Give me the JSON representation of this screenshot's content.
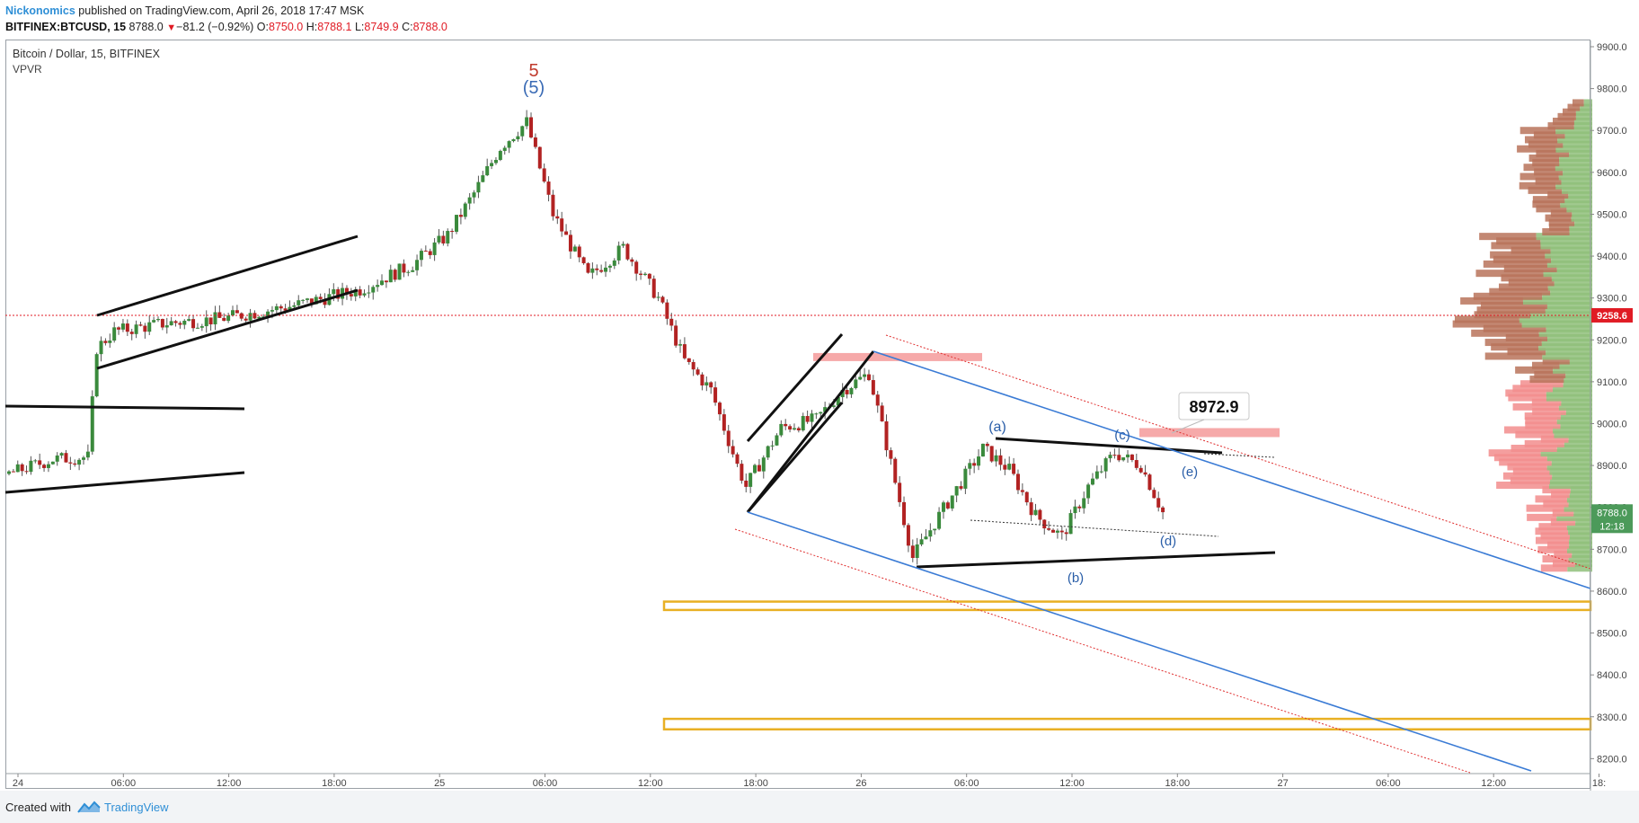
{
  "header": {
    "author": "Nickonomics",
    "published": "published on TradingView.com, April 26, 2018 17:47 MSK",
    "symbol": "BITFINEX:BTCUSD, 15",
    "last": "8788.0",
    "change": "−81.2 (−0.92%)",
    "open_label": "O:",
    "open": "8750.0",
    "high_label": "H:",
    "high": "8788.1",
    "low_label": "L:",
    "low": "8749.9",
    "close_label": "C:",
    "close": "8788.0"
  },
  "legend": {
    "title": "Bitcoin / Dollar, 15, BITFINEX",
    "indicator": "VPVR"
  },
  "footer": {
    "created_with": "Created with",
    "brand": "TradingView"
  },
  "colors": {
    "bull": "#3a8a3c",
    "bear": "#b22222",
    "trend_blue": "#3a7bd5",
    "zone_orange": "#e8b024",
    "highlight_red": "#f59a9a",
    "last_price_badge": "#4c9a5a",
    "line_badge": "#e01b24"
  },
  "chart_data": {
    "type": "candlestick",
    "title": "Bitcoin / Dollar, 15, BITFINEX",
    "x_ticks": [
      "24",
      "06:00",
      "12:00",
      "18:00",
      "25",
      "06:00",
      "12:00",
      "18:00",
      "26",
      "06:00",
      "12:00",
      "18:00",
      "27",
      "06:00",
      "12:00",
      "18:"
    ],
    "y_ticks": [
      "9900.0",
      "9800.0",
      "9700.0",
      "9600.0",
      "9500.0",
      "9400.0",
      "9300.0",
      "9200.0",
      "9100.0",
      "9000.0",
      "8900.0",
      "8800.0",
      "8700.0",
      "8600.0",
      "8500.0",
      "8400.0",
      "8300.0",
      "8200.0"
    ],
    "ylim": [
      8170,
      9920
    ],
    "grid": false,
    "last_price": {
      "value": 8788.0,
      "label": "8788.0",
      "countdown": "12:18"
    },
    "horizontal_line": {
      "value": 9258.6,
      "label": "9258.6"
    },
    "price_callout": {
      "value": 8972.9,
      "label": "8972.9"
    },
    "wave_labels": [
      {
        "text": "5",
        "color": "#c0392b"
      },
      {
        "text": "(5)",
        "color": "#3a6bb5"
      },
      {
        "text": "(a)",
        "color": "#2a5ea8"
      },
      {
        "text": "(b)",
        "color": "#2a5ea8"
      },
      {
        "text": "(c)",
        "color": "#2a5ea8"
      },
      {
        "text": "(d)",
        "color": "#2a5ea8"
      },
      {
        "text": "(e)",
        "color": "#2a5ea8"
      }
    ],
    "support_zones": [
      {
        "low": 8555,
        "high": 8575
      },
      {
        "low": 8270,
        "high": 8295
      }
    ],
    "resistance_zones": [
      {
        "low": 9150,
        "high": 9160
      },
      {
        "low": 8965,
        "high": 8985
      }
    ],
    "price_path_estimated": [
      [
        "24 00:00",
        8880
      ],
      [
        "24 02:30",
        8915
      ],
      [
        "24 04:30",
        8920
      ],
      [
        "24 05:00",
        9180
      ],
      [
        "24 06:00",
        9220
      ],
      [
        "24 09:00",
        9240
      ],
      [
        "24 12:00",
        9250
      ],
      [
        "24 16:00",
        9280
      ],
      [
        "24 20:00",
        9320
      ],
      [
        "24 23:00",
        9380
      ],
      [
        "25 01:00",
        9450
      ],
      [
        "25 02:30",
        9550
      ],
      [
        "25 04:00",
        9660
      ],
      [
        "25 05:30",
        9720
      ],
      [
        "25 07:00",
        9500
      ],
      [
        "25 09:00",
        9350
      ],
      [
        "25 11:00",
        9420
      ],
      [
        "25 13:00",
        9300
      ],
      [
        "25 14:30",
        9150
      ],
      [
        "25 16:00",
        9080
      ],
      [
        "25 17:30",
        8900
      ],
      [
        "25 18:00",
        8850
      ],
      [
        "25 20:00",
        8990
      ],
      [
        "25 22:00",
        9010
      ],
      [
        "25 23:30",
        9080
      ],
      [
        "26 01:00",
        9120
      ],
      [
        "26 02:00",
        8950
      ],
      [
        "26 03:30",
        8680
      ],
      [
        "26 05:00",
        8780
      ],
      [
        "26 07:30",
        8940
      ],
      [
        "26 09:00",
        8890
      ],
      [
        "26 10:30",
        8780
      ],
      [
        "26 12:00",
        8730
      ],
      [
        "26 13:30",
        8850
      ],
      [
        "26 15:00",
        8930
      ],
      [
        "26 16:30",
        8900
      ],
      [
        "26 17:45",
        8788
      ]
    ]
  }
}
